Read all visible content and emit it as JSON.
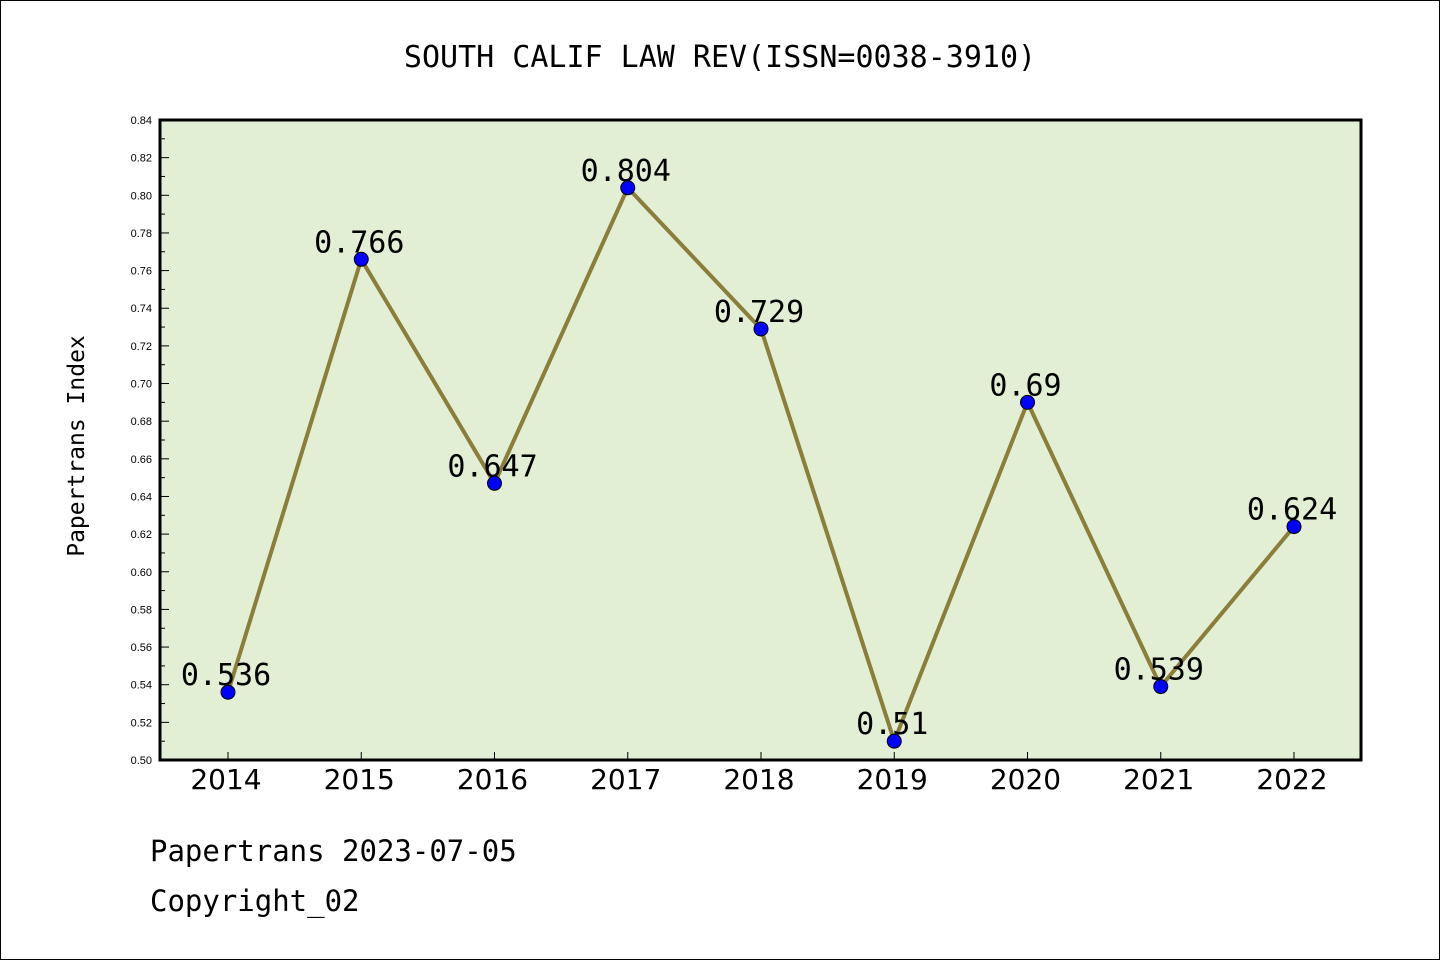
{
  "chart_data": {
    "type": "line",
    "title": "SOUTH CALIF LAW REV(ISSN=0038-3910)",
    "ylabel": "Papertrans Index",
    "xlabel": "",
    "categories": [
      "2014",
      "2015",
      "2016",
      "2017",
      "2018",
      "2019",
      "2020",
      "2021",
      "2022"
    ],
    "series": [
      {
        "values": [
          0.536,
          0.766,
          0.647,
          0.804,
          0.729,
          0.51,
          0.69,
          0.539,
          0.624
        ],
        "labels": [
          "0.536",
          "0.766",
          "0.647",
          "0.804",
          "0.729",
          "0.51",
          "0.69",
          "0.539",
          "0.624"
        ]
      }
    ],
    "ylim": [
      0.5,
      0.84
    ],
    "yticks": [
      "0.50",
      "0.52",
      "0.54",
      "0.56",
      "0.58",
      "0.60",
      "0.62",
      "0.64",
      "0.66",
      "0.68",
      "0.70",
      "0.72",
      "0.74",
      "0.76",
      "0.78",
      "0.80",
      "0.82",
      "0.84"
    ],
    "grid": false,
    "legend": "none",
    "colors": {
      "plot_bg": "#e2efd5",
      "line": "#8b7d3a",
      "marker": "#0000ff"
    }
  },
  "footer": {
    "line1": "Papertrans 2023-07-05",
    "line2": "Copyright_02"
  }
}
